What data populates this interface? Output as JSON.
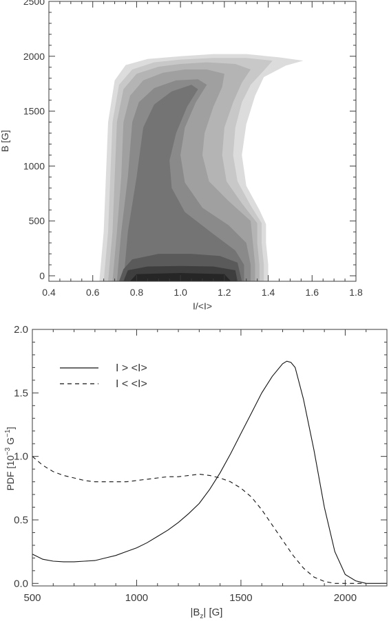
{
  "colors": {
    "axis": "#3a3a3a",
    "levels": [
      "#dcdcdc",
      "#c8c8c8",
      "#b4b4b4",
      "#a0a0a0",
      "#8a8a8a",
      "#747474",
      "#5a5a5a",
      "#3e3e3e",
      "#262626"
    ]
  },
  "chart_data": [
    {
      "type": "heatmap",
      "title": "",
      "xlabel": "I/<I>",
      "ylabel": "B [G]",
      "xlim": [
        0.4,
        1.8
      ],
      "ylim": [
        -50,
        2500
      ],
      "xticks": [
        0.4,
        0.6,
        0.8,
        1.0,
        1.2,
        1.4,
        1.6,
        1.8
      ],
      "xtick_labels": [
        "0.4",
        "0.6",
        "0.8",
        "1.0",
        "1.2",
        "1.4",
        "1.6",
        "1.8"
      ],
      "yticks": [
        0,
        500,
        1000,
        1500,
        2000,
        2500
      ],
      "ytick_labels": [
        "0",
        "500",
        "1000",
        "1500",
        "2000",
        "2500"
      ],
      "grid": false,
      "contours": [
        {
          "level": 1,
          "color": "#dcdcdc",
          "points": [
            [
              0.63,
              -50
            ],
            [
              0.65,
              400
            ],
            [
              0.66,
              900
            ],
            [
              0.67,
              1400
            ],
            [
              0.7,
              1780
            ],
            [
              0.75,
              1920
            ],
            [
              0.85,
              1975
            ],
            [
              1.0,
              2000
            ],
            [
              1.15,
              2020
            ],
            [
              1.3,
              2020
            ],
            [
              1.45,
              1990
            ],
            [
              1.56,
              1960
            ],
            [
              1.48,
              1915
            ],
            [
              1.38,
              1810
            ],
            [
              1.34,
              1640
            ],
            [
              1.3,
              1380
            ],
            [
              1.28,
              1100
            ],
            [
              1.3,
              820
            ],
            [
              1.36,
              600
            ],
            [
              1.39,
              470
            ],
            [
              1.39,
              300
            ],
            [
              1.4,
              100
            ],
            [
              1.4,
              -50
            ]
          ]
        },
        {
          "level": 2,
          "color": "#c8c8c8",
          "points": [
            [
              0.65,
              -50
            ],
            [
              0.67,
              400
            ],
            [
              0.68,
              900
            ],
            [
              0.69,
              1400
            ],
            [
              0.72,
              1740
            ],
            [
              0.78,
              1880
            ],
            [
              0.88,
              1945
            ],
            [
              1.0,
              1970
            ],
            [
              1.15,
              1985
            ],
            [
              1.3,
              1985
            ],
            [
              1.42,
              1960
            ],
            [
              1.38,
              1870
            ],
            [
              1.32,
              1740
            ],
            [
              1.28,
              1580
            ],
            [
              1.25,
              1350
            ],
            [
              1.24,
              1100
            ],
            [
              1.26,
              860
            ],
            [
              1.32,
              640
            ],
            [
              1.37,
              480
            ],
            [
              1.37,
              300
            ],
            [
              1.38,
              100
            ],
            [
              1.38,
              -50
            ]
          ]
        },
        {
          "level": 3,
          "color": "#b4b4b4",
          "points": [
            [
              0.67,
              -50
            ],
            [
              0.69,
              400
            ],
            [
              0.7,
              900
            ],
            [
              0.71,
              1400
            ],
            [
              0.74,
              1700
            ],
            [
              0.8,
              1840
            ],
            [
              0.9,
              1905
            ],
            [
              1.0,
              1930
            ],
            [
              1.12,
              1945
            ],
            [
              1.25,
              1930
            ],
            [
              1.32,
              1880
            ],
            [
              1.28,
              1760
            ],
            [
              1.24,
              1580
            ],
            [
              1.2,
              1350
            ],
            [
              1.19,
              1100
            ],
            [
              1.21,
              860
            ],
            [
              1.28,
              660
            ],
            [
              1.35,
              480
            ],
            [
              1.35,
              300
            ],
            [
              1.36,
              100
            ],
            [
              1.36,
              -50
            ]
          ]
        },
        {
          "level": 4,
          "color": "#a0a0a0",
          "points": [
            [
              0.69,
              -50
            ],
            [
              0.71,
              400
            ],
            [
              0.73,
              900
            ],
            [
              0.74,
              1400
            ],
            [
              0.77,
              1640
            ],
            [
              0.83,
              1780
            ],
            [
              0.92,
              1850
            ],
            [
              1.02,
              1880
            ],
            [
              1.12,
              1880
            ],
            [
              1.2,
              1840
            ],
            [
              1.19,
              1720
            ],
            [
              1.15,
              1540
            ],
            [
              1.11,
              1300
            ],
            [
              1.1,
              1100
            ],
            [
              1.13,
              860
            ],
            [
              1.22,
              680
            ],
            [
              1.32,
              500
            ],
            [
              1.33,
              300
            ],
            [
              1.34,
              100
            ],
            [
              1.34,
              -50
            ]
          ]
        },
        {
          "level": 5,
          "color": "#8a8a8a",
          "points": [
            [
              0.71,
              -50
            ],
            [
              0.73,
              400
            ],
            [
              0.76,
              900
            ],
            [
              0.78,
              1400
            ],
            [
              0.81,
              1580
            ],
            [
              0.88,
              1710
            ],
            [
              0.98,
              1780
            ],
            [
              1.08,
              1790
            ],
            [
              1.12,
              1740
            ],
            [
              1.07,
              1580
            ],
            [
              1.02,
              1350
            ],
            [
              1.0,
              1100
            ],
            [
              1.02,
              850
            ],
            [
              1.1,
              620
            ],
            [
              1.22,
              460
            ],
            [
              1.3,
              300
            ],
            [
              1.32,
              100
            ],
            [
              1.32,
              -50
            ]
          ]
        },
        {
          "level": 6,
          "color": "#747474",
          "points": [
            [
              0.74,
              -50
            ],
            [
              0.76,
              400
            ],
            [
              0.8,
              900
            ],
            [
              0.83,
              1350
            ],
            [
              0.88,
              1560
            ],
            [
              0.96,
              1680
            ],
            [
              1.05,
              1740
            ],
            [
              1.08,
              1700
            ],
            [
              1.03,
              1540
            ],
            [
              0.98,
              1300
            ],
            [
              0.95,
              1050
            ],
            [
              0.96,
              800
            ],
            [
              1.02,
              580
            ],
            [
              1.15,
              380
            ],
            [
              1.25,
              230
            ],
            [
              1.29,
              100
            ],
            [
              1.29,
              -50
            ]
          ]
        },
        {
          "level": 7,
          "color": "#5a5a5a",
          "points": [
            [
              0.72,
              -50
            ],
            [
              0.74,
              60
            ],
            [
              0.78,
              150
            ],
            [
              0.9,
              200
            ],
            [
              1.05,
              200
            ],
            [
              1.18,
              180
            ],
            [
              1.26,
              120
            ],
            [
              1.28,
              -50
            ]
          ]
        },
        {
          "level": 8,
          "color": "#3e3e3e",
          "points": [
            [
              0.74,
              -50
            ],
            [
              0.76,
              50
            ],
            [
              0.85,
              85
            ],
            [
              1.0,
              90
            ],
            [
              1.15,
              85
            ],
            [
              1.25,
              50
            ],
            [
              1.26,
              -50
            ]
          ]
        },
        {
          "level": 9,
          "color": "#262626",
          "points": [
            [
              0.77,
              -50
            ],
            [
              0.8,
              15
            ],
            [
              1.0,
              25
            ],
            [
              1.2,
              15
            ],
            [
              1.23,
              -50
            ]
          ]
        }
      ]
    },
    {
      "type": "line",
      "title": "",
      "xlabel": "|B_z| [G]",
      "ylabel": "PDF [10^-3 G^-1]",
      "xlim": [
        500,
        2200
      ],
      "ylim": [
        -0.02,
        2.0
      ],
      "xticks": [
        500,
        1000,
        1500,
        2000
      ],
      "xtick_labels": [
        "500",
        "1000",
        "1500",
        "2000"
      ],
      "yticks": [
        0.0,
        0.5,
        1.0,
        1.5,
        2.0
      ],
      "ytick_labels": [
        "0.0",
        "0.5",
        "1.0",
        "1.5",
        "2.0"
      ],
      "grid": false,
      "legend_position": "top-left",
      "series": [
        {
          "name": "I > <I>",
          "style": "solid",
          "x": [
            500,
            550,
            600,
            650,
            700,
            750,
            800,
            850,
            900,
            950,
            1000,
            1050,
            1100,
            1150,
            1200,
            1250,
            1300,
            1350,
            1400,
            1450,
            1500,
            1550,
            1600,
            1650,
            1700,
            1720,
            1740,
            1760,
            1800,
            1850,
            1900,
            1950,
            2000,
            2050,
            2100,
            2150,
            2200
          ],
          "y": [
            0.23,
            0.19,
            0.175,
            0.17,
            0.17,
            0.175,
            0.18,
            0.2,
            0.22,
            0.25,
            0.28,
            0.32,
            0.37,
            0.42,
            0.48,
            0.55,
            0.63,
            0.74,
            0.87,
            1.02,
            1.18,
            1.34,
            1.5,
            1.63,
            1.73,
            1.75,
            1.74,
            1.7,
            1.45,
            1.05,
            0.6,
            0.25,
            0.07,
            0.02,
            0.0,
            0.0,
            0.0
          ]
        },
        {
          "name": "I < <I>",
          "style": "dashed",
          "x": [
            500,
            550,
            600,
            650,
            700,
            750,
            800,
            850,
            900,
            950,
            1000,
            1050,
            1100,
            1150,
            1200,
            1250,
            1300,
            1350,
            1400,
            1450,
            1500,
            1550,
            1600,
            1650,
            1700,
            1750,
            1800,
            1850,
            1900,
            1950,
            2000,
            2050,
            2100
          ],
          "y": [
            1.0,
            0.93,
            0.88,
            0.85,
            0.83,
            0.81,
            0.8,
            0.8,
            0.8,
            0.8,
            0.81,
            0.82,
            0.83,
            0.84,
            0.84,
            0.85,
            0.86,
            0.85,
            0.83,
            0.8,
            0.75,
            0.68,
            0.58,
            0.46,
            0.34,
            0.22,
            0.12,
            0.05,
            0.015,
            0.0,
            0.0,
            0.0,
            0.0
          ]
        }
      ]
    }
  ]
}
